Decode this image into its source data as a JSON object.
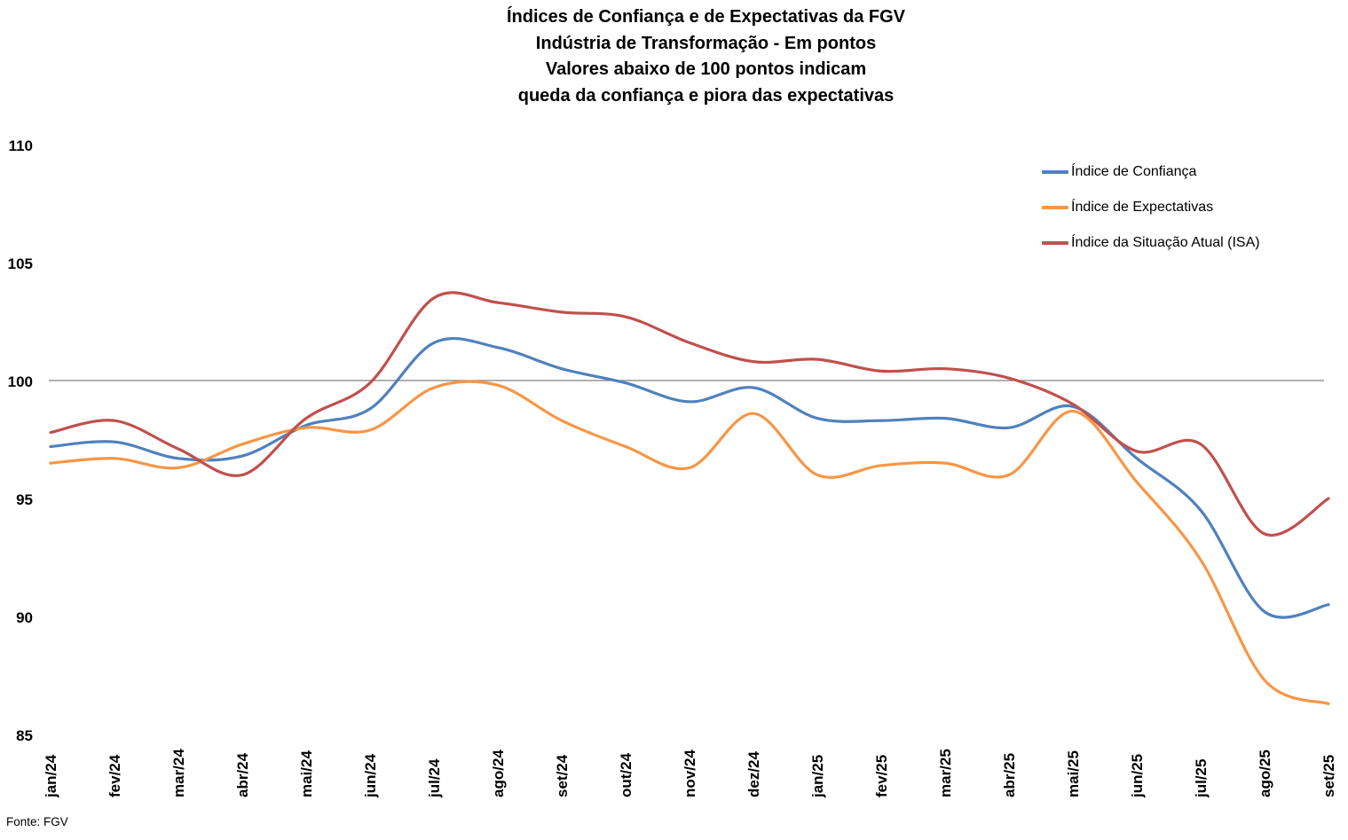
{
  "title": {
    "line1": "Índices de Confiança e de Expectativas da FGV",
    "line2": "Indústria de Transformação - Em pontos",
    "line3": "Valores abaixo de 100 pontos indicam",
    "line4": "queda da confiança e piora das expectativas"
  },
  "source": "Fonte: FGV",
  "chart_data": {
    "type": "line",
    "title": "Índices de Confiança e de Expectativas da FGV — Indústria de Transformação - Em pontos — Valores abaixo de 100 pontos indicam queda da confiança e piora das expectativas",
    "categories": [
      "jan/24",
      "fev/24",
      "mar/24",
      "abr/24",
      "mai/24",
      "jun/24",
      "jul/24",
      "ago/24",
      "set/24",
      "out/24",
      "nov/24",
      "dez/24",
      "jan/25",
      "fev/25",
      "mar/25",
      "abr/25",
      "mai/25",
      "jun/25",
      "jul/25",
      "ago/25",
      "set/25"
    ],
    "series": [
      {
        "name": "Índice de Confiança",
        "color": "#4F81BD",
        "values": [
          97.2,
          97.4,
          96.7,
          96.8,
          98.1,
          98.8,
          101.6,
          101.4,
          100.5,
          99.9,
          99.1,
          99.7,
          98.4,
          98.3,
          98.4,
          98.0,
          98.9,
          96.7,
          94.5,
          90.2,
          90.5
        ]
      },
      {
        "name": "Índice de Expectativas",
        "color": "#F79646",
        "values": [
          96.5,
          96.7,
          96.3,
          97.3,
          98.0,
          97.9,
          99.7,
          99.8,
          98.3,
          97.2,
          96.3,
          98.6,
          96.0,
          96.4,
          96.5,
          96.0,
          98.7,
          95.7,
          92.4,
          87.3,
          86.3
        ]
      },
      {
        "name": "Índice da Situação Atual (ISA)",
        "color": "#C0504D",
        "values": [
          97.8,
          98.3,
          97.1,
          96.0,
          98.4,
          99.9,
          103.5,
          103.3,
          102.9,
          102.7,
          101.6,
          100.8,
          100.9,
          100.4,
          100.5,
          100.1,
          99.0,
          97.0,
          97.3,
          93.5,
          95.0
        ]
      }
    ],
    "xlabel": "",
    "ylabel": "",
    "ylim": [
      85,
      110
    ],
    "yticks": [
      110,
      105,
      100,
      95,
      90,
      85
    ],
    "reference_line": 100,
    "grid": "horizontal-reference-only",
    "gridline_color": "#808080",
    "legend_position": "top-right",
    "smooth": true,
    "unit": "pontos"
  }
}
